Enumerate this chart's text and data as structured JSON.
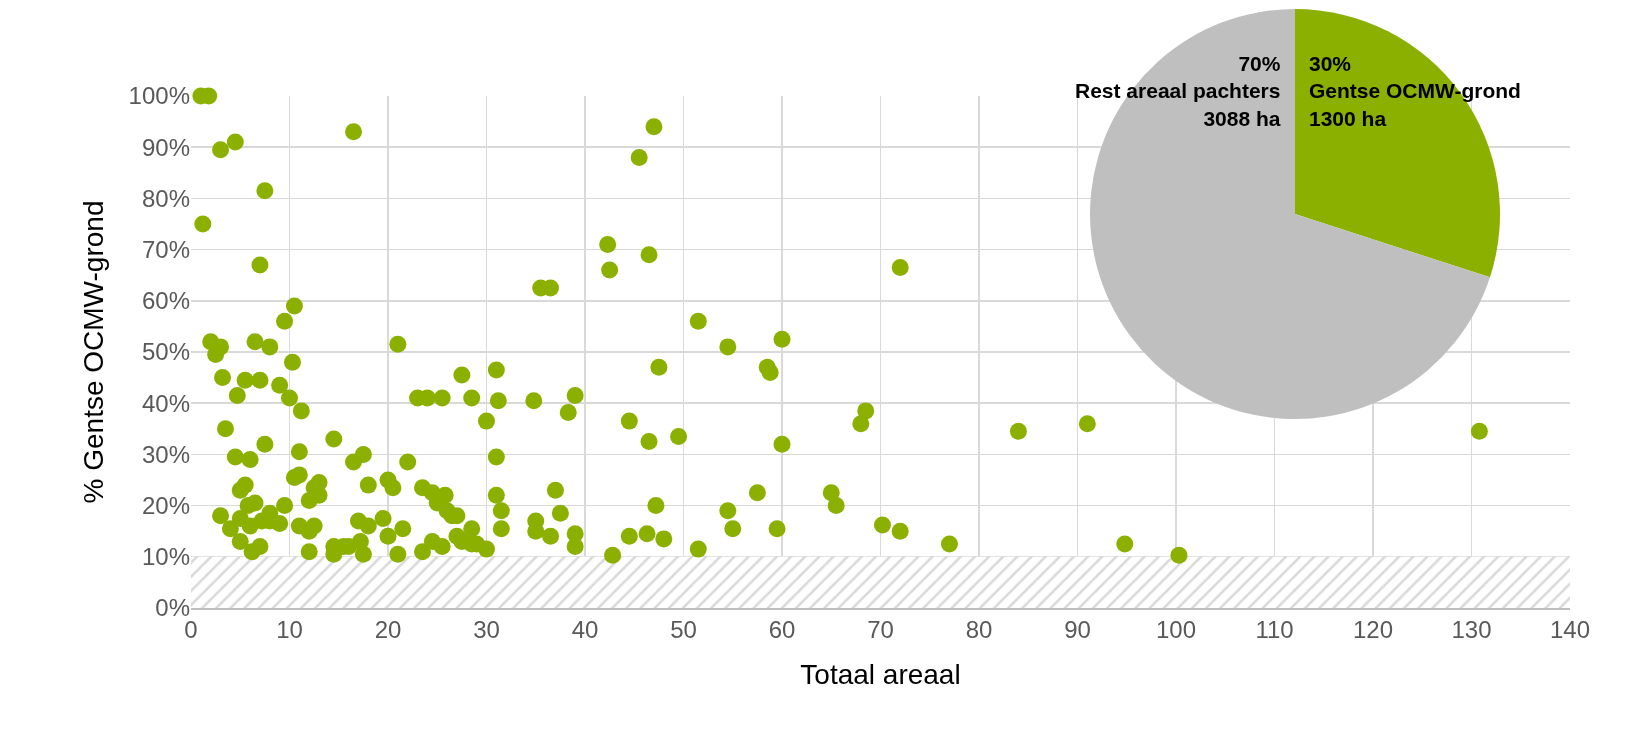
{
  "chart_data": [
    {
      "type": "scatter",
      "xlabel": "Totaal areaal",
      "ylabel": "% Gentse OCMW-grond",
      "color": "#8cb000",
      "marker": "circle",
      "grid": true,
      "legend": false,
      "xlim": [
        0,
        140
      ],
      "xticks": [
        0,
        10,
        20,
        30,
        40,
        50,
        60,
        70,
        80,
        90,
        100,
        110,
        120,
        130,
        140
      ],
      "ylim": [
        0,
        100
      ],
      "yticks": [
        {
          "value": 0,
          "label": "0%"
        },
        {
          "value": 10,
          "label": "10%"
        },
        {
          "value": 20,
          "label": "20%"
        },
        {
          "value": 30,
          "label": "30%"
        },
        {
          "value": 40,
          "label": "40%"
        },
        {
          "value": 50,
          "label": "50%"
        },
        {
          "value": 60,
          "label": "60%"
        },
        {
          "value": 70,
          "label": "70%"
        },
        {
          "value": 80,
          "label": "80%"
        },
        {
          "value": 90,
          "label": "90%"
        },
        {
          "value": 100,
          "label": "100%"
        }
      ],
      "bands": [
        {
          "axis": "y",
          "from": 0,
          "to": 10,
          "color": "#d9d9d9"
        }
      ],
      "x": [
        1,
        1.8,
        1.2,
        2,
        2.5,
        3,
        3,
        3.2,
        3,
        3.5,
        4,
        4.5,
        4.5,
        4.7,
        5,
        5,
        5,
        5.5,
        5.5,
        5.8,
        6,
        6,
        6.2,
        6.5,
        6.5,
        7,
        7,
        7,
        7.2,
        7.5,
        7.5,
        8,
        8,
        8,
        9,
        9,
        9.5,
        9.5,
        10,
        10.3,
        10.5,
        10.5,
        11,
        11,
        11,
        11.2,
        12,
        12,
        12,
        12.5,
        12.5,
        13,
        13,
        14.5,
        14.5,
        14.5,
        15.5,
        16,
        16.5,
        16.5,
        17,
        17.2,
        17.5,
        17.5,
        18,
        18,
        19.5,
        20,
        20,
        20.5,
        21,
        21,
        21.5,
        22,
        23,
        23.5,
        23.5,
        24,
        24.5,
        24.5,
        25,
        25.5,
        25.5,
        25.8,
        26,
        26.5,
        27,
        27,
        27.5,
        27.5,
        28.5,
        28.5,
        28.5,
        29,
        30,
        30,
        31,
        31,
        31,
        31.2,
        31.5,
        31.5,
        34.8,
        35,
        35,
        35.5,
        36.5,
        36.5,
        37,
        37.5,
        38.3,
        39,
        39,
        39,
        42.3,
        42.5,
        42.8,
        44.5,
        44.5,
        45.5,
        46.3,
        46.5,
        46.5,
        47,
        47.2,
        47.5,
        48,
        49.5,
        51.5,
        51.5,
        54.5,
        54.5,
        55,
        57.5,
        58.5,
        58.8,
        59.5,
        60,
        60,
        65,
        65.5,
        68,
        68.5,
        70.2,
        72,
        72,
        77,
        84,
        91,
        94.8,
        100.3,
        130.8
      ],
      "values": [
        100,
        100,
        75,
        52,
        49.5,
        51,
        89.5,
        45,
        18,
        35,
        15.5,
        91,
        29.5,
        41.5,
        13,
        17.5,
        23,
        24,
        44.5,
        20,
        29,
        16,
        11,
        52,
        20.5,
        44.5,
        67,
        12,
        17,
        81.5,
        32,
        18.5,
        51,
        17,
        43.5,
        16.5,
        56,
        20,
        41,
        48,
        59,
        25.5,
        30.5,
        26,
        16,
        38.5,
        11,
        21,
        15,
        23.5,
        16,
        22,
        24.5,
        33,
        12,
        10.5,
        12,
        12,
        93,
        28.5,
        17,
        13,
        30,
        10.5,
        24,
        16,
        17.5,
        25,
        14,
        23.5,
        51.5,
        10.5,
        15.5,
        28.5,
        41,
        23.5,
        11,
        41,
        13,
        22.5,
        20.5,
        41,
        12,
        22,
        19,
        18,
        18,
        14,
        45.5,
        13,
        41,
        15.5,
        12.5,
        12.5,
        36.5,
        11.5,
        46.5,
        29.5,
        22,
        40.5,
        19,
        15.5,
        40.5,
        17,
        15,
        62.5,
        62.5,
        14,
        23,
        18.5,
        38.2,
        14.5,
        12,
        41.5,
        71,
        66,
        10.3,
        36.5,
        14,
        88,
        14.5,
        69,
        32.5,
        94,
        20,
        47,
        13.5,
        33.5,
        56,
        11.5,
        51,
        19,
        15.5,
        22.5,
        47,
        46,
        15.5,
        52.5,
        32,
        22.5,
        20,
        36,
        38.5,
        16.2,
        66.5,
        15,
        12.5,
        34.5,
        36,
        12.5,
        10.3,
        34.5
      ]
    },
    {
      "type": "pie",
      "categories": [
        "Gentse OCMW-grond",
        "Rest areaal pachters"
      ],
      "values": [
        30,
        70
      ],
      "colors": [
        "#8cb000",
        "#bfbfbf"
      ],
      "value_labels": [
        "30%\n1300 ha",
        "70%\n3088 ha"
      ],
      "legend": false
    }
  ]
}
